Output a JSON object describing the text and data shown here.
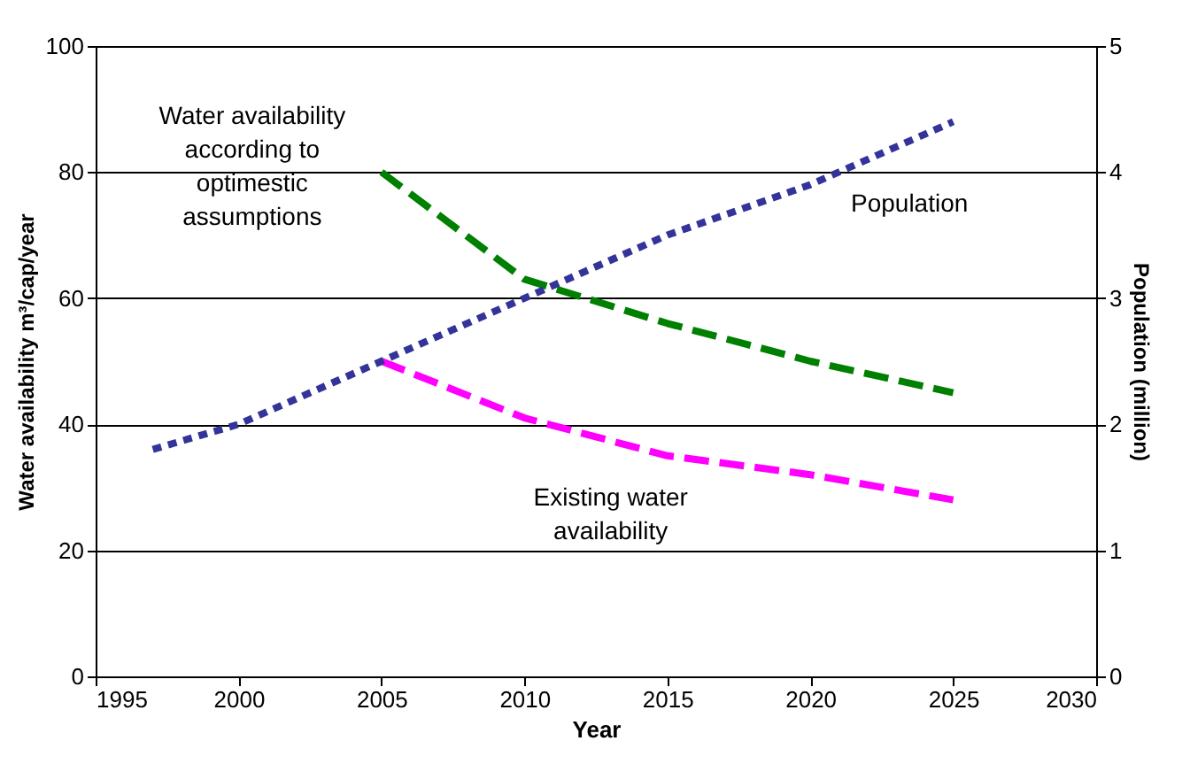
{
  "chart_data": {
    "type": "line",
    "xlabel": "Year",
    "ylabel": "Water availability m³/cap/year",
    "y2label": "Population (million)",
    "xlim": [
      1995,
      2030
    ],
    "xticks": [
      1995,
      2000,
      2005,
      2010,
      2015,
      2020,
      2025,
      2030
    ],
    "ylim": [
      0,
      100
    ],
    "yticks": [
      0,
      20,
      40,
      60,
      80,
      100
    ],
    "y2lim": [
      0,
      5
    ],
    "y2ticks": [
      0,
      1,
      2,
      3,
      4,
      5
    ],
    "grid": "y",
    "series": [
      {
        "name": "Water availability according to optimestic assumptions",
        "color": "#008000",
        "line_style": "dashed",
        "x": [
          2005,
          2010,
          2015,
          2020,
          2025
        ],
        "values": [
          80,
          63,
          56,
          50,
          45
        ]
      },
      {
        "name": "Existing water availability",
        "color": "#ff00ff",
        "line_style": "dashed",
        "x": [
          2005,
          2010,
          2015,
          2020,
          2025
        ],
        "values": [
          50,
          41,
          35,
          32,
          28
        ]
      },
      {
        "name": "Population",
        "color": "#333399",
        "line_style": "dotted",
        "axis": "y2",
        "x": [
          1997,
          2000,
          2005,
          2010,
          2015,
          2020,
          2025
        ],
        "values": [
          1.8,
          2.0,
          2.5,
          3.0,
          3.5,
          3.9,
          4.4
        ]
      }
    ]
  }
}
